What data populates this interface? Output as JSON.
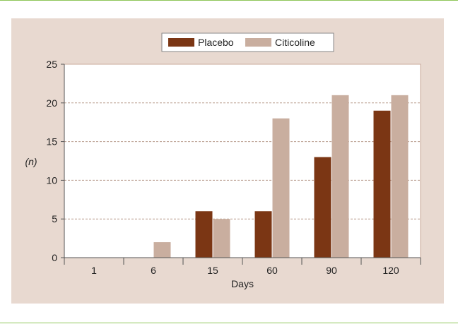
{
  "chart_data": {
    "type": "bar",
    "title": "",
    "xlabel": "Days",
    "ylabel": "(n)",
    "categories": [
      "1",
      "6",
      "15",
      "60",
      "90",
      "120"
    ],
    "series": [
      {
        "name": "Placebo",
        "color": "#7b3614",
        "values": [
          0,
          0,
          6,
          6,
          13,
          19
        ]
      },
      {
        "name": "Citicoline",
        "color": "#c9ae9f",
        "values": [
          0,
          2,
          5,
          18,
          21,
          21
        ]
      }
    ],
    "ylim": [
      0,
      25
    ],
    "yticks": [
      "0",
      "5",
      "10",
      "15",
      "20",
      "25"
    ],
    "grid": true,
    "legend_position": "top-center"
  }
}
